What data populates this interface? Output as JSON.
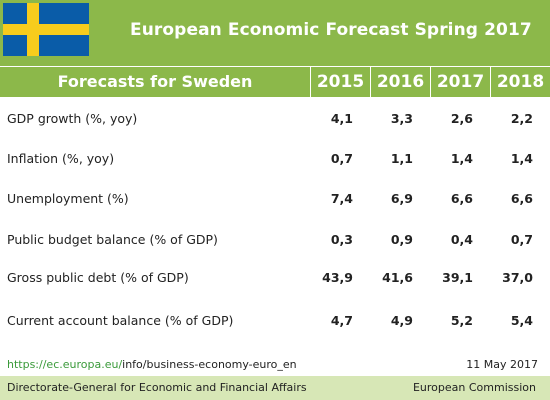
{
  "header": {
    "title": "European Economic Forecast Spring 2017",
    "flag_icon": "sweden-flag",
    "colors": {
      "green": "#8cb84a",
      "light_green": "#d7e7b6",
      "flag_blue": "#0a5ca8",
      "flag_yellow": "#f7cc1d"
    }
  },
  "table": {
    "heading": "Forecasts for Sweden",
    "years": [
      "2015",
      "2016",
      "2017",
      "2018"
    ],
    "rows": [
      {
        "name": "GDP growth (%, yoy)",
        "values": [
          "4,1",
          "3,3",
          "2,6",
          "2,2"
        ]
      },
      {
        "name": "Inflation (%, yoy)",
        "values": [
          "0,7",
          "1,1",
          "1,4",
          "1,4"
        ]
      },
      {
        "name": "Unemployment (%)",
        "values": [
          "7,4",
          "6,9",
          "6,6",
          "6,6"
        ]
      },
      {
        "name": "Public budget balance (% of GDP)",
        "values": [
          "0,3",
          "0,9",
          "0,4",
          "0,7"
        ]
      },
      {
        "name": "Gross public debt (% of GDP)",
        "values": [
          "43,9",
          "41,6",
          "39,1",
          "37,0"
        ]
      },
      {
        "name": "Current account balance (% of GDP)",
        "values": [
          "4,7",
          "4,9",
          "5,2",
          "5,4"
        ]
      }
    ]
  },
  "footer": {
    "url_domain": "https://ec.europa.eu/",
    "url_path": "info/business-economy-euro_en",
    "date": "11 May 2017",
    "dg": "Directorate-General for Economic and Financial Affairs",
    "org": "European Commission"
  }
}
